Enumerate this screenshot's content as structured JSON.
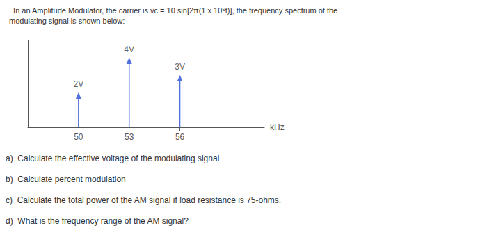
{
  "chart_data": {
    "type": "stem",
    "title": ". In an Amplitude Modulator, the carrier is vc = 10 sin[2π(1 x 10⁶t)], the frequency spectrum of the",
    "subtitle": "modulating signal is shown below:",
    "x": [
      50,
      53,
      56
    ],
    "values": [
      2,
      4,
      3
    ],
    "value_labels": [
      "2V",
      "4V",
      "3V"
    ],
    "data_labels": true,
    "x_label": "kHz",
    "xlim": [
      47,
      61
    ],
    "xticks": [
      50,
      53,
      56
    ],
    "ylim": [
      0,
      5.0
    ],
    "tick_labels": "x",
    "grid": false,
    "annotations": [
      "a)  Calculate the effective voltage of the modulating signal",
      "b)  Calculate percent modulation",
      "c)  Calculate the total power of the AM signal if load resistance is 75-ohms.",
      "d)  What is the frequency range of the AM signal?"
    ]
  }
}
